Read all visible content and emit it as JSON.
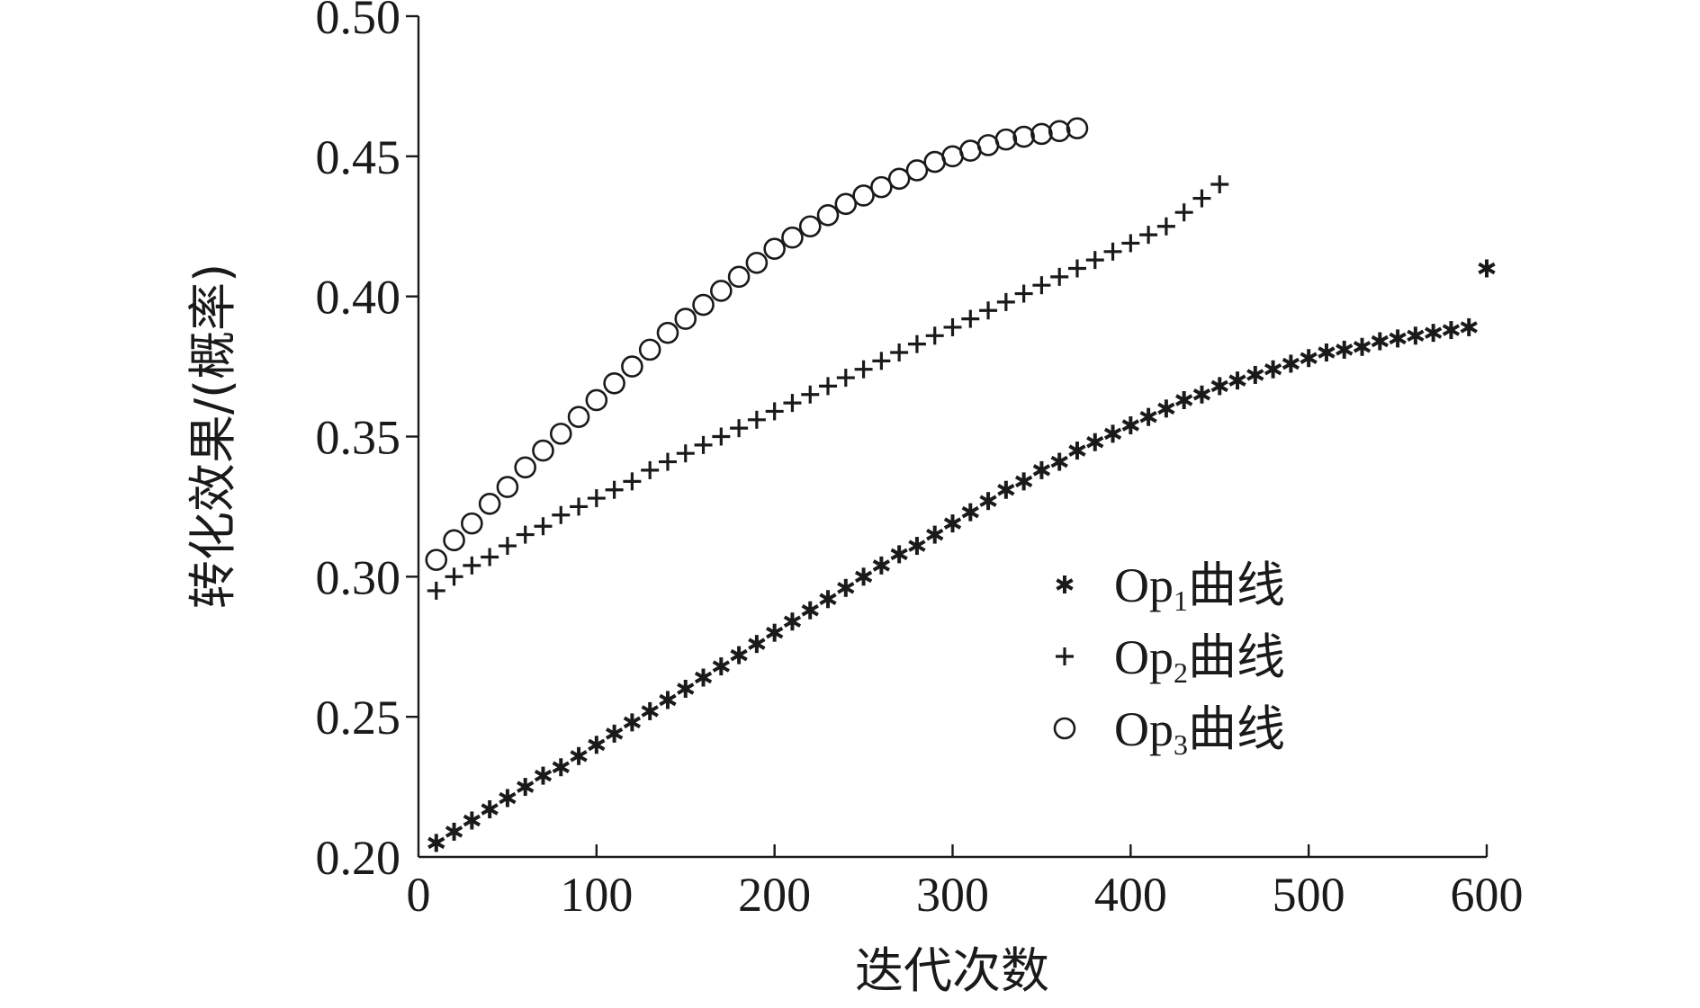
{
  "chart_data": {
    "type": "scatter",
    "title": "",
    "xlabel": "迭代次数",
    "ylabel": "转化效果/(概率)",
    "xlim": [
      0,
      600
    ],
    "ylim": [
      0.2,
      0.5
    ],
    "xticks": [
      0,
      100,
      200,
      300,
      400,
      500,
      600
    ],
    "xtick_labels": [
      "0",
      "100",
      "200",
      "300",
      "400",
      "500",
      "600"
    ],
    "yticks": [
      0.2,
      0.25,
      0.3,
      0.35,
      0.4,
      0.45,
      0.5
    ],
    "ytick_labels": [
      "0.20",
      "0.25",
      "0.30",
      "0.35",
      "0.40",
      "0.45",
      "0.50"
    ],
    "grid": false,
    "legend_position": "center-right",
    "marker_color": "#1a1a1a",
    "series": [
      {
        "name": "Op1曲线",
        "legend_main": "Op",
        "legend_sub": "1",
        "legend_suffix": "曲线",
        "marker": "asterisk",
        "x": [
          10,
          20,
          30,
          40,
          50,
          60,
          70,
          80,
          90,
          100,
          110,
          120,
          130,
          140,
          150,
          160,
          170,
          180,
          190,
          200,
          210,
          220,
          230,
          240,
          250,
          260,
          270,
          280,
          290,
          300,
          310,
          320,
          330,
          340,
          350,
          360,
          370,
          380,
          390,
          400,
          410,
          420,
          430,
          440,
          450,
          460,
          470,
          480,
          490,
          500,
          510,
          520,
          530,
          540,
          550,
          560,
          570,
          580,
          590,
          600
        ],
        "y": [
          0.205,
          0.209,
          0.213,
          0.217,
          0.221,
          0.225,
          0.229,
          0.232,
          0.236,
          0.24,
          0.244,
          0.248,
          0.252,
          0.256,
          0.26,
          0.264,
          0.268,
          0.272,
          0.276,
          0.28,
          0.284,
          0.288,
          0.292,
          0.296,
          0.3,
          0.304,
          0.308,
          0.311,
          0.315,
          0.319,
          0.323,
          0.327,
          0.331,
          0.334,
          0.338,
          0.341,
          0.345,
          0.348,
          0.351,
          0.354,
          0.357,
          0.36,
          0.363,
          0.365,
          0.368,
          0.37,
          0.372,
          0.374,
          0.376,
          0.378,
          0.38,
          0.381,
          0.382,
          0.384,
          0.385,
          0.386,
          0.387,
          0.388,
          0.389,
          0.41
        ]
      },
      {
        "name": "Op2曲线",
        "legend_main": "Op",
        "legend_sub": "2",
        "legend_suffix": "曲线",
        "marker": "plus",
        "x": [
          10,
          20,
          30,
          40,
          50,
          60,
          70,
          80,
          90,
          100,
          110,
          120,
          130,
          140,
          150,
          160,
          170,
          180,
          190,
          200,
          210,
          220,
          230,
          240,
          250,
          260,
          270,
          280,
          290,
          300,
          310,
          320,
          330,
          340,
          350,
          360,
          370,
          380,
          390,
          400,
          410,
          420,
          430,
          440,
          450
        ],
        "y": [
          0.295,
          0.3,
          0.304,
          0.307,
          0.311,
          0.315,
          0.318,
          0.322,
          0.325,
          0.328,
          0.331,
          0.334,
          0.338,
          0.341,
          0.344,
          0.347,
          0.35,
          0.353,
          0.356,
          0.359,
          0.362,
          0.365,
          0.368,
          0.371,
          0.374,
          0.377,
          0.38,
          0.383,
          0.386,
          0.389,
          0.392,
          0.395,
          0.398,
          0.401,
          0.404,
          0.407,
          0.41,
          0.413,
          0.416,
          0.419,
          0.422,
          0.425,
          0.43,
          0.435,
          0.44
        ]
      },
      {
        "name": "Op3曲线",
        "legend_main": "Op",
        "legend_sub": "3",
        "legend_suffix": "曲线",
        "marker": "circle",
        "x": [
          10,
          20,
          30,
          40,
          50,
          60,
          70,
          80,
          90,
          100,
          110,
          120,
          130,
          140,
          150,
          160,
          170,
          180,
          190,
          200,
          210,
          220,
          230,
          240,
          250,
          260,
          270,
          280,
          290,
          300,
          310,
          320,
          330,
          340,
          350,
          360,
          370
        ],
        "y": [
          0.306,
          0.313,
          0.319,
          0.326,
          0.332,
          0.339,
          0.345,
          0.351,
          0.357,
          0.363,
          0.369,
          0.375,
          0.381,
          0.387,
          0.392,
          0.397,
          0.402,
          0.407,
          0.412,
          0.417,
          0.421,
          0.425,
          0.429,
          0.433,
          0.436,
          0.439,
          0.442,
          0.445,
          0.448,
          0.45,
          0.452,
          0.454,
          0.456,
          0.457,
          0.458,
          0.459,
          0.46
        ]
      }
    ]
  }
}
